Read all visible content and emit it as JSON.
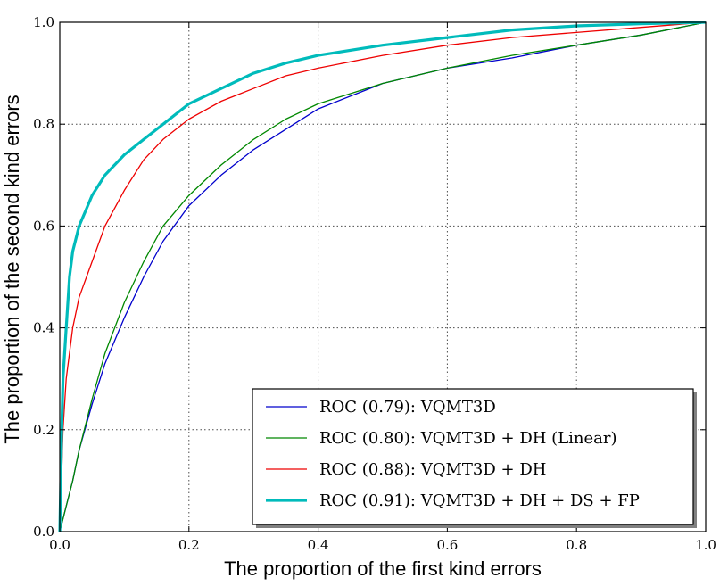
{
  "chart_data": {
    "type": "line",
    "title": "",
    "xlabel": "The proportion of the first kind errors",
    "ylabel": "The proportion of the second kind errors",
    "xlim": [
      0,
      1
    ],
    "ylim": [
      0,
      1
    ],
    "xticks": [
      "0.0",
      "0.2",
      "0.4",
      "0.6",
      "0.8",
      "1.0"
    ],
    "yticks": [
      "0.0",
      "0.2",
      "0.4",
      "0.6",
      "0.8",
      "1.0"
    ],
    "grid": true,
    "legend_position": "bottom-right",
    "series": [
      {
        "name": "ROC (0.79): VQMT3D",
        "color": "#0000cc",
        "points": [
          [
            0,
            0
          ],
          [
            0.01,
            0.05
          ],
          [
            0.02,
            0.1
          ],
          [
            0.03,
            0.16
          ],
          [
            0.05,
            0.25
          ],
          [
            0.07,
            0.33
          ],
          [
            0.1,
            0.42
          ],
          [
            0.13,
            0.5
          ],
          [
            0.16,
            0.57
          ],
          [
            0.2,
            0.64
          ],
          [
            0.25,
            0.7
          ],
          [
            0.3,
            0.75
          ],
          [
            0.35,
            0.79
          ],
          [
            0.4,
            0.83
          ],
          [
            0.5,
            0.88
          ],
          [
            0.6,
            0.91
          ],
          [
            0.7,
            0.93
          ],
          [
            0.8,
            0.955
          ],
          [
            0.9,
            0.975
          ],
          [
            1,
            1
          ]
        ]
      },
      {
        "name": "ROC (0.80): VQMT3D + DH (Linear)",
        "color": "#008800",
        "points": [
          [
            0,
            0
          ],
          [
            0.01,
            0.05
          ],
          [
            0.02,
            0.1
          ],
          [
            0.03,
            0.16
          ],
          [
            0.05,
            0.26
          ],
          [
            0.07,
            0.35
          ],
          [
            0.1,
            0.45
          ],
          [
            0.13,
            0.53
          ],
          [
            0.16,
            0.6
          ],
          [
            0.2,
            0.66
          ],
          [
            0.25,
            0.72
          ],
          [
            0.3,
            0.77
          ],
          [
            0.35,
            0.81
          ],
          [
            0.4,
            0.84
          ],
          [
            0.5,
            0.88
          ],
          [
            0.6,
            0.91
          ],
          [
            0.7,
            0.935
          ],
          [
            0.8,
            0.955
          ],
          [
            0.9,
            0.975
          ],
          [
            1,
            1
          ]
        ]
      },
      {
        "name": "ROC (0.88): VQMT3D + DH",
        "color": "#ee0000",
        "points": [
          [
            0,
            0
          ],
          [
            0.005,
            0.2
          ],
          [
            0.01,
            0.3
          ],
          [
            0.02,
            0.4
          ],
          [
            0.03,
            0.46
          ],
          [
            0.05,
            0.53
          ],
          [
            0.07,
            0.6
          ],
          [
            0.1,
            0.67
          ],
          [
            0.13,
            0.73
          ],
          [
            0.16,
            0.77
          ],
          [
            0.2,
            0.81
          ],
          [
            0.25,
            0.845
          ],
          [
            0.3,
            0.87
          ],
          [
            0.35,
            0.895
          ],
          [
            0.4,
            0.91
          ],
          [
            0.5,
            0.935
          ],
          [
            0.6,
            0.955
          ],
          [
            0.7,
            0.97
          ],
          [
            0.8,
            0.98
          ],
          [
            0.9,
            0.99
          ],
          [
            1,
            1
          ]
        ]
      },
      {
        "name": "ROC (0.91): VQMT3D + DH + DS + FP",
        "color": "#00bbbb",
        "points": [
          [
            0,
            0
          ],
          [
            0.003,
            0.2
          ],
          [
            0.005,
            0.3
          ],
          [
            0.01,
            0.4
          ],
          [
            0.015,
            0.5
          ],
          [
            0.02,
            0.55
          ],
          [
            0.03,
            0.6
          ],
          [
            0.04,
            0.63
          ],
          [
            0.05,
            0.66
          ],
          [
            0.07,
            0.7
          ],
          [
            0.1,
            0.74
          ],
          [
            0.13,
            0.77
          ],
          [
            0.16,
            0.8
          ],
          [
            0.2,
            0.84
          ],
          [
            0.25,
            0.87
          ],
          [
            0.3,
            0.9
          ],
          [
            0.35,
            0.92
          ],
          [
            0.4,
            0.935
          ],
          [
            0.5,
            0.955
          ],
          [
            0.6,
            0.97
          ],
          [
            0.7,
            0.985
          ],
          [
            0.8,
            0.993
          ],
          [
            0.9,
            0.997
          ],
          [
            1,
            1
          ]
        ]
      }
    ]
  }
}
